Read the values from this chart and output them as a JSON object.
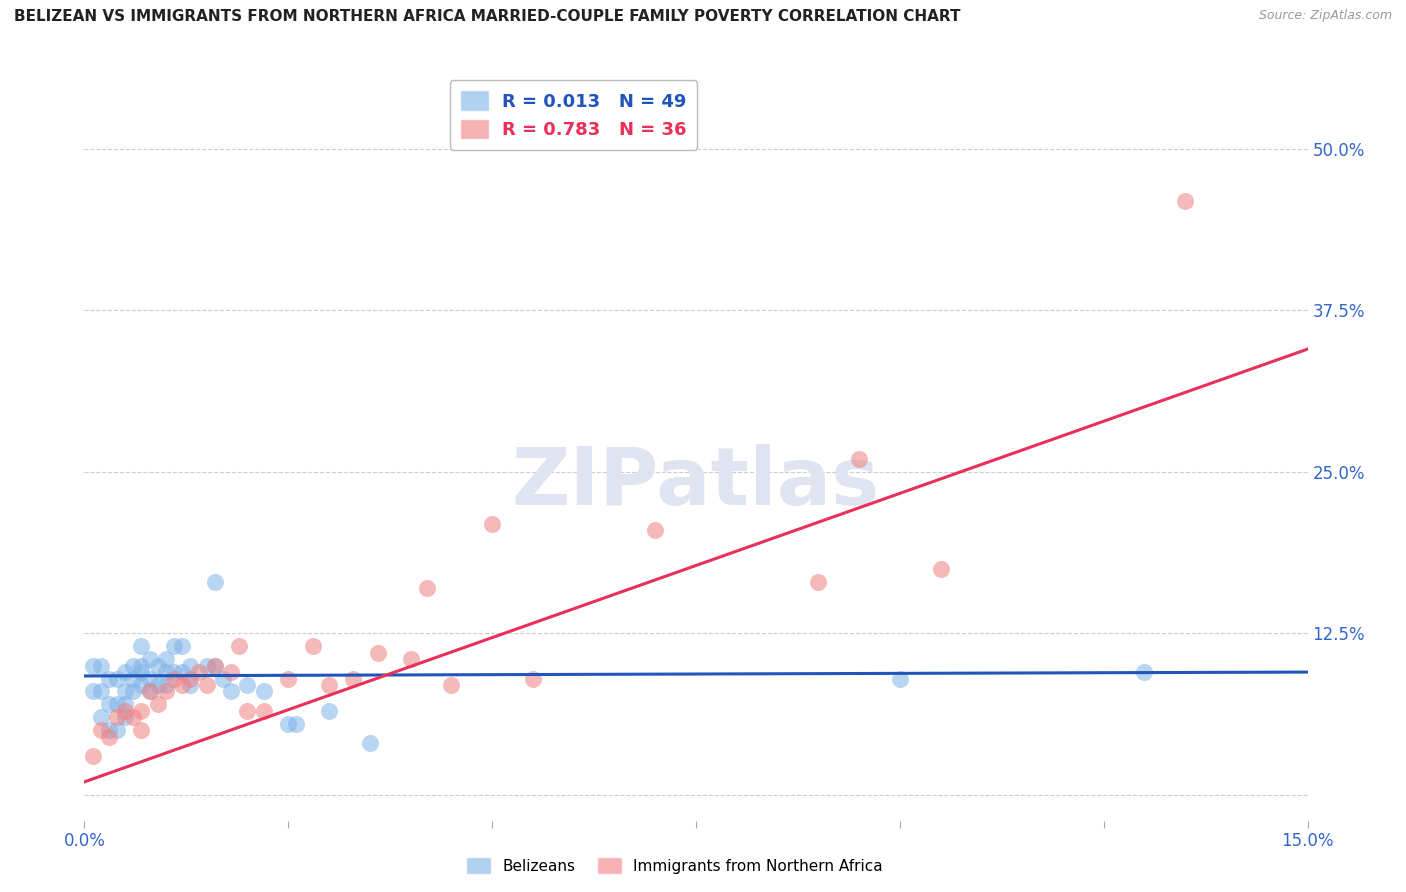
{
  "title": "BELIZEAN VS IMMIGRANTS FROM NORTHERN AFRICA MARRIED-COUPLE FAMILY POVERTY CORRELATION CHART",
  "source": "Source: ZipAtlas.com",
  "ylabel_label": "Married-Couple Family Poverty",
  "xlim": [
    0.0,
    0.15
  ],
  "ylim": [
    -0.02,
    0.56
  ],
  "xticks": [
    0.0,
    0.025,
    0.05,
    0.075,
    0.1,
    0.125,
    0.15
  ],
  "xtick_labels": [
    "0.0%",
    "",
    "",
    "",
    "",
    "",
    "15.0%"
  ],
  "yticks": [
    0.0,
    0.125,
    0.25,
    0.375,
    0.5
  ],
  "ytick_labels": [
    "",
    "12.5%",
    "25.0%",
    "37.5%",
    "50.0%"
  ],
  "blue_color": "#7EB3E8",
  "pink_color": "#F08080",
  "blue_line_color": "#2255BB",
  "pink_line_color": "#E8305A",
  "grid_color": "#CCCCCC",
  "background_color": "#FFFFFF",
  "watermark_text": "ZIPatlas",
  "watermark_color": "#E0E4F0",
  "legend_R_blue": "0.013",
  "legend_N_blue": "49",
  "legend_R_pink": "0.783",
  "legend_N_pink": "36",
  "label_blue": "Belizeans",
  "label_pink": "Immigrants from Northern Africa",
  "blue_scatter_x": [
    0.001,
    0.001,
    0.002,
    0.002,
    0.002,
    0.003,
    0.003,
    0.003,
    0.004,
    0.004,
    0.004,
    0.005,
    0.005,
    0.005,
    0.005,
    0.006,
    0.006,
    0.006,
    0.007,
    0.007,
    0.007,
    0.007,
    0.008,
    0.008,
    0.008,
    0.009,
    0.009,
    0.01,
    0.01,
    0.01,
    0.011,
    0.011,
    0.012,
    0.012,
    0.013,
    0.013,
    0.015,
    0.016,
    0.016,
    0.017,
    0.018,
    0.02,
    0.022,
    0.025,
    0.026,
    0.03,
    0.035,
    0.1,
    0.13
  ],
  "blue_scatter_y": [
    0.1,
    0.08,
    0.1,
    0.08,
    0.06,
    0.07,
    0.09,
    0.05,
    0.09,
    0.07,
    0.05,
    0.095,
    0.08,
    0.07,
    0.06,
    0.1,
    0.09,
    0.08,
    0.115,
    0.1,
    0.095,
    0.085,
    0.105,
    0.09,
    0.08,
    0.1,
    0.085,
    0.105,
    0.095,
    0.085,
    0.115,
    0.095,
    0.115,
    0.095,
    0.1,
    0.085,
    0.1,
    0.165,
    0.1,
    0.09,
    0.08,
    0.085,
    0.08,
    0.055,
    0.055,
    0.065,
    0.04,
    0.09,
    0.095
  ],
  "pink_scatter_x": [
    0.001,
    0.002,
    0.003,
    0.004,
    0.005,
    0.006,
    0.007,
    0.007,
    0.008,
    0.009,
    0.01,
    0.011,
    0.012,
    0.013,
    0.014,
    0.015,
    0.016,
    0.018,
    0.019,
    0.02,
    0.022,
    0.025,
    0.028,
    0.03,
    0.033,
    0.036,
    0.04,
    0.042,
    0.045,
    0.05,
    0.055,
    0.07,
    0.09,
    0.095,
    0.105,
    0.135
  ],
  "pink_scatter_y": [
    0.03,
    0.05,
    0.045,
    0.06,
    0.065,
    0.06,
    0.065,
    0.05,
    0.08,
    0.07,
    0.08,
    0.09,
    0.085,
    0.09,
    0.095,
    0.085,
    0.1,
    0.095,
    0.115,
    0.065,
    0.065,
    0.09,
    0.115,
    0.085,
    0.09,
    0.11,
    0.105,
    0.16,
    0.085,
    0.21,
    0.09,
    0.205,
    0.165,
    0.26,
    0.175,
    0.46
  ],
  "blue_trend_x": [
    0.0,
    0.15
  ],
  "blue_trend_y": [
    0.092,
    0.095
  ],
  "pink_trend_x": [
    0.0,
    0.15
  ],
  "pink_trend_y": [
    0.01,
    0.345
  ]
}
